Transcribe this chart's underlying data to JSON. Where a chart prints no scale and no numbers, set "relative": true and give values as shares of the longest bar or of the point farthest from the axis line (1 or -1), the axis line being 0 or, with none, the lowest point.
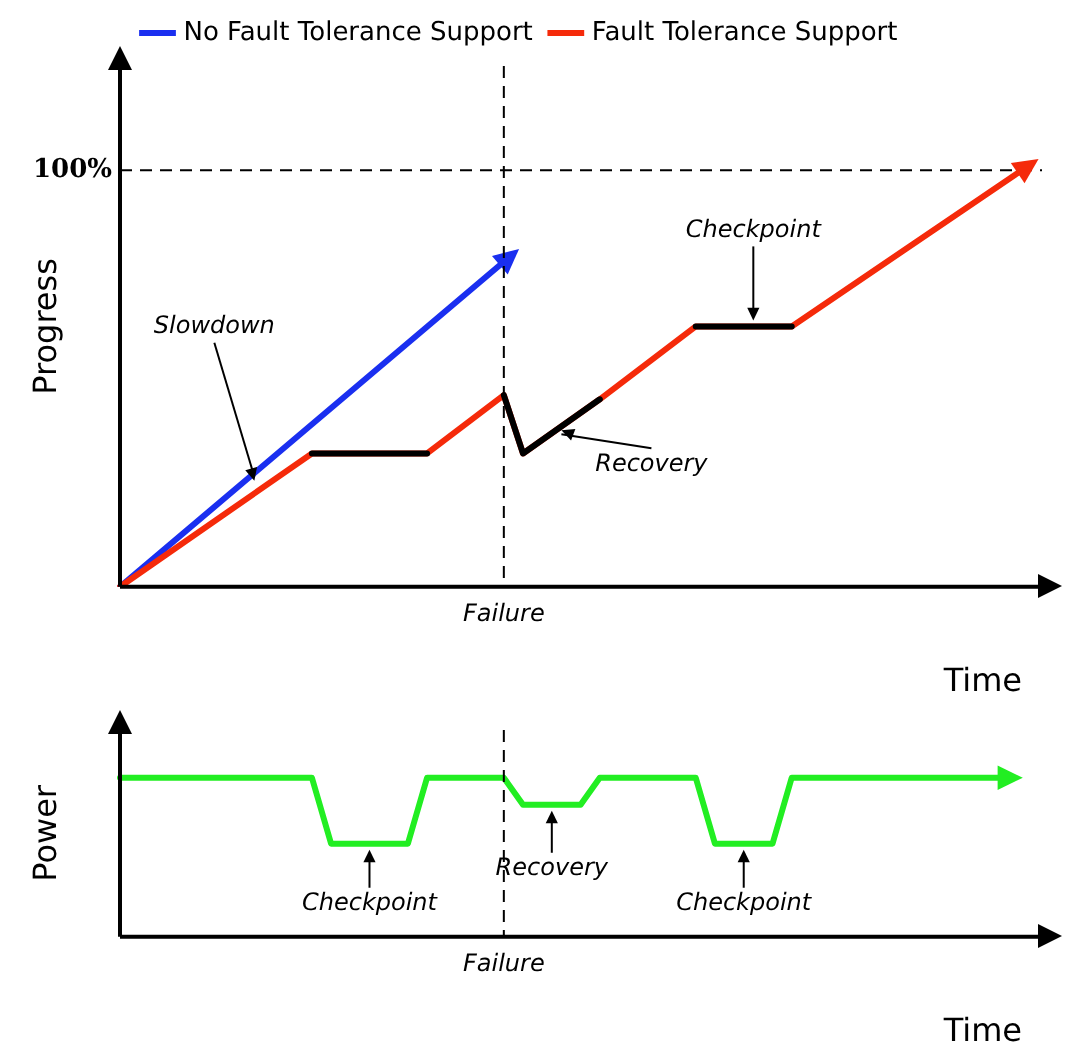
{
  "chart_data": [
    {
      "type": "line",
      "ylabel": "Progress",
      "xlabel": "Time",
      "relative": true,
      "legend": "top",
      "line_style": "solid",
      "categories": [
        null,
        null,
        null,
        null,
        null,
        null,
        null,
        null,
        null,
        null,
        null,
        null,
        null,
        null,
        null,
        null,
        null,
        null,
        null,
        null,
        null,
        null,
        null,
        null,
        null,
        null,
        null,
        null,
        null,
        null,
        null,
        null,
        null,
        null,
        null,
        null,
        null,
        null,
        null,
        null,
        null,
        null,
        null,
        null,
        null,
        null,
        null,
        null
      ],
      "series": [
        {
          "name": "No Fault Tolerance Support",
          "color": "#1a2ff0",
          "values": [
            0,
            null,
            null,
            null,
            null,
            null,
            null,
            null,
            null,
            null,
            null,
            null,
            null,
            null,
            null,
            null,
            null,
            null,
            null,
            null,
            0.78,
            null,
            null,
            null,
            null,
            null,
            null,
            null,
            null,
            null,
            null,
            null,
            null,
            null,
            null,
            null,
            null,
            null,
            null,
            null,
            null,
            null,
            null,
            null,
            null,
            null,
            null,
            null
          ]
        },
        {
          "name": "Fault Tolerance Support",
          "color": "#f52a0a",
          "values": [
            0,
            null,
            null,
            null,
            null,
            null,
            null,
            null,
            null,
            null,
            0.32,
            null,
            null,
            null,
            null,
            null,
            0.32,
            null,
            null,
            null,
            0.46,
            0.32,
            null,
            null,
            null,
            0.45,
            null,
            null,
            null,
            null,
            0.625,
            null,
            null,
            null,
            null,
            0.625,
            null,
            null,
            null,
            null,
            null,
            null,
            null,
            null,
            null,
            null,
            null,
            1
          ]
        },
        {
          "color": "#000000",
          "values": [
            null,
            null,
            null,
            null,
            null,
            null,
            null,
            null,
            null,
            null,
            0.32,
            null,
            null,
            null,
            null,
            null,
            0.32,
            null,
            null,
            null,
            null,
            null,
            null,
            null,
            null,
            null,
            null,
            null,
            null,
            null,
            null,
            null,
            null,
            null,
            null,
            null,
            null,
            null,
            null,
            null,
            null,
            null,
            null,
            null,
            null,
            null,
            null,
            null
          ]
        },
        {
          "color": "#000000",
          "values": [
            null,
            null,
            null,
            null,
            null,
            null,
            null,
            null,
            null,
            null,
            null,
            null,
            null,
            null,
            null,
            null,
            null,
            null,
            null,
            null,
            0.46,
            0.32,
            null,
            null,
            null,
            0.45,
            null,
            null,
            null,
            null,
            null,
            null,
            null,
            null,
            null,
            null,
            null,
            null,
            null,
            null,
            null,
            null,
            null,
            null,
            null,
            null,
            null,
            null
          ]
        },
        {
          "color": "#000000",
          "values": [
            null,
            null,
            null,
            null,
            null,
            null,
            null,
            null,
            null,
            null,
            null,
            null,
            null,
            null,
            null,
            null,
            null,
            null,
            null,
            null,
            null,
            null,
            null,
            null,
            null,
            null,
            null,
            null,
            null,
            null,
            0.625,
            null,
            null,
            null,
            null,
            0.625,
            null,
            null,
            null,
            null,
            null,
            null,
            null,
            null,
            null,
            null,
            null,
            null
          ]
        }
      ],
      "ref_lines": [
        {
          "axis": "y",
          "value": 1,
          "label": "100%"
        }
      ],
      "annotations": [
        "Slowdown",
        "Recovery",
        "Checkpoint",
        "Failure"
      ]
    },
    {
      "type": "line",
      "ylabel": "Power",
      "xlabel": "Time",
      "relative": true,
      "line_style": "solid",
      "categories": [
        null,
        null,
        null,
        null,
        null,
        null,
        null,
        null,
        null,
        null,
        null,
        null,
        null,
        null,
        null,
        null,
        null,
        null,
        null,
        null,
        null,
        null,
        null,
        null,
        null,
        null,
        null,
        null,
        null,
        null,
        null,
        null,
        null,
        null,
        null,
        null,
        null,
        null,
        null,
        null,
        null,
        null,
        null,
        null,
        null,
        null,
        null,
        null
      ],
      "series": [
        {
          "color": "#22ee22",
          "values": [
            1,
            null,
            null,
            null,
            null,
            null,
            null,
            null,
            null,
            null,
            1,
            0.585,
            null,
            null,
            null,
            0.585,
            1,
            null,
            null,
            null,
            1,
            0.83,
            null,
            null,
            0.83,
            1,
            null,
            null,
            null,
            null,
            1,
            0.585,
            null,
            null,
            0.585,
            1,
            null,
            null,
            null,
            null,
            null,
            null,
            null,
            null,
            null,
            null,
            1,
            null
          ]
        }
      ],
      "annotations": [
        "Checkpoint",
        "Recovery",
        "Checkpoint",
        "Failure"
      ]
    }
  ]
}
